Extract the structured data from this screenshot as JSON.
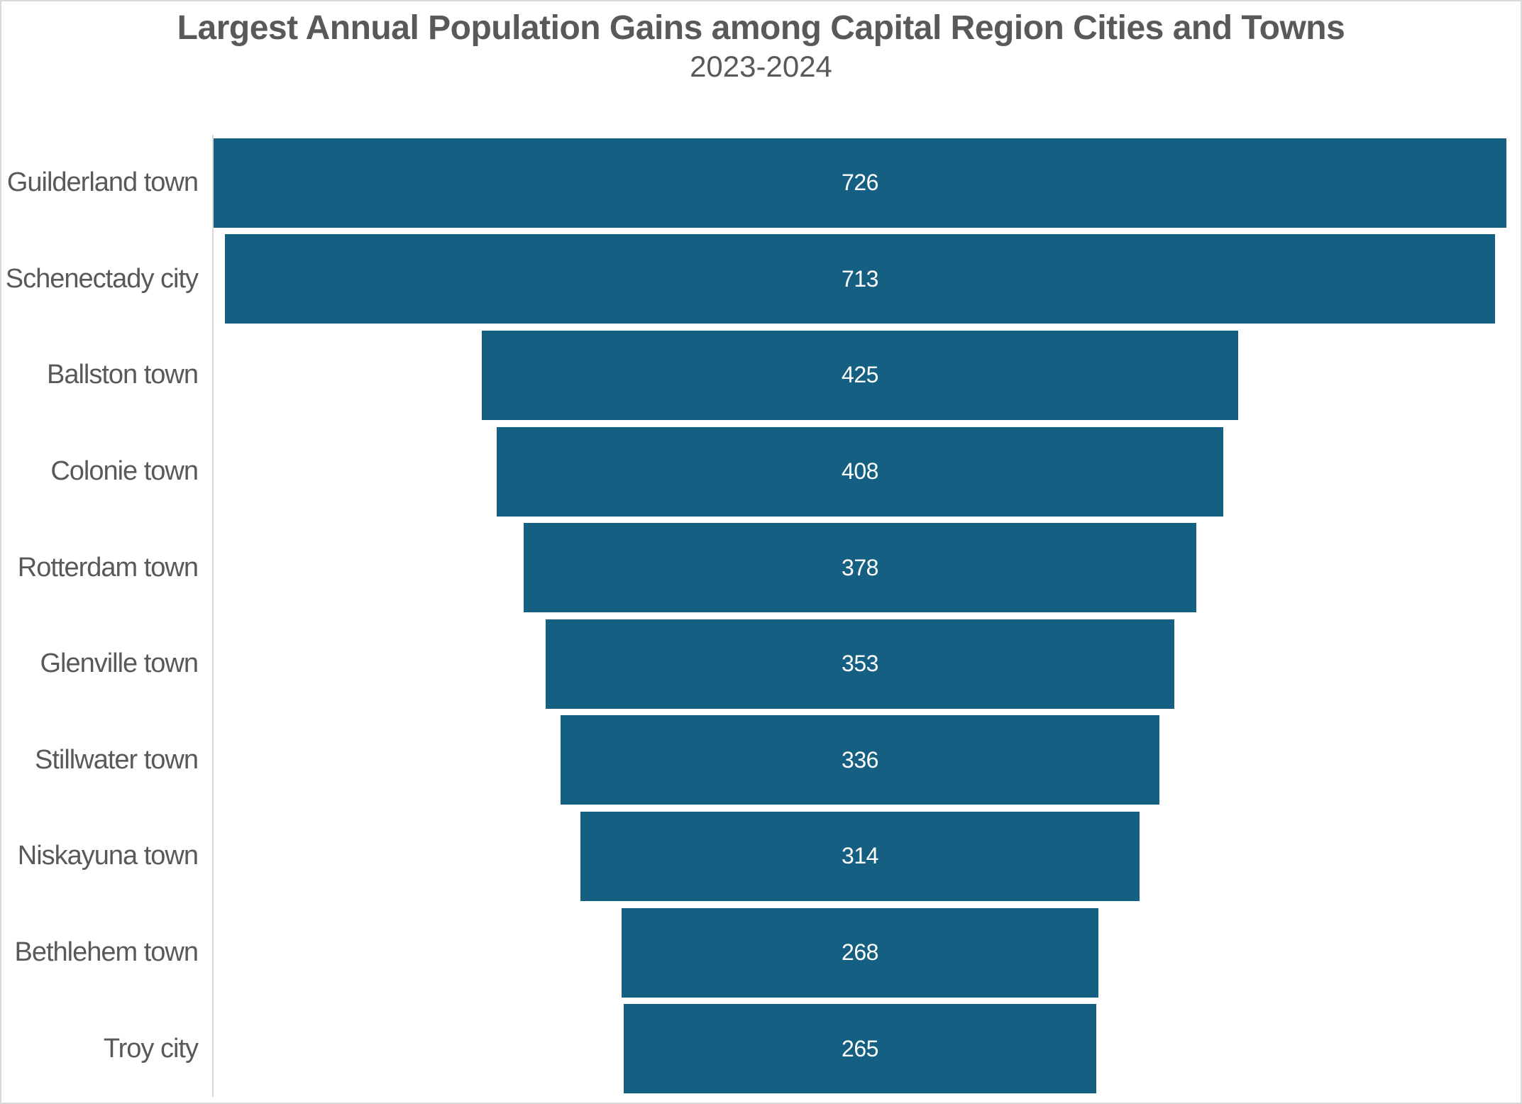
{
  "header": {
    "title": "Largest Annual Population Gains among Capital Region Cities and Towns",
    "subtitle": "2023-2024"
  },
  "colors": {
    "bar_fill": "#156082",
    "text_gray": "#595959",
    "value_text": "#ffffff",
    "axis_line": "#d9d9d9",
    "frame_border": "#d9d9d9",
    "background": "#ffffff"
  },
  "chart_data": {
    "type": "bar",
    "variant": "funnel-centered-horizontal",
    "title": "Largest Annual Population Gains among Capital Region Cities and Towns",
    "subtitle": "2023-2024",
    "categories": [
      "Guilderland town",
      "Schenectady city",
      "Ballston town",
      "Colonie town",
      "Rotterdam town",
      "Glenville town",
      "Stillwater town",
      "Niskayuna town",
      "Bethlehem town",
      "Troy city"
    ],
    "values": [
      726,
      713,
      425,
      408,
      378,
      353,
      336,
      314,
      268,
      265
    ],
    "value_axis_max": 726,
    "xlabel": "",
    "ylabel": "",
    "grid": false,
    "legend": false,
    "data_labels": "inside-center, white",
    "category_axis_line": true
  }
}
